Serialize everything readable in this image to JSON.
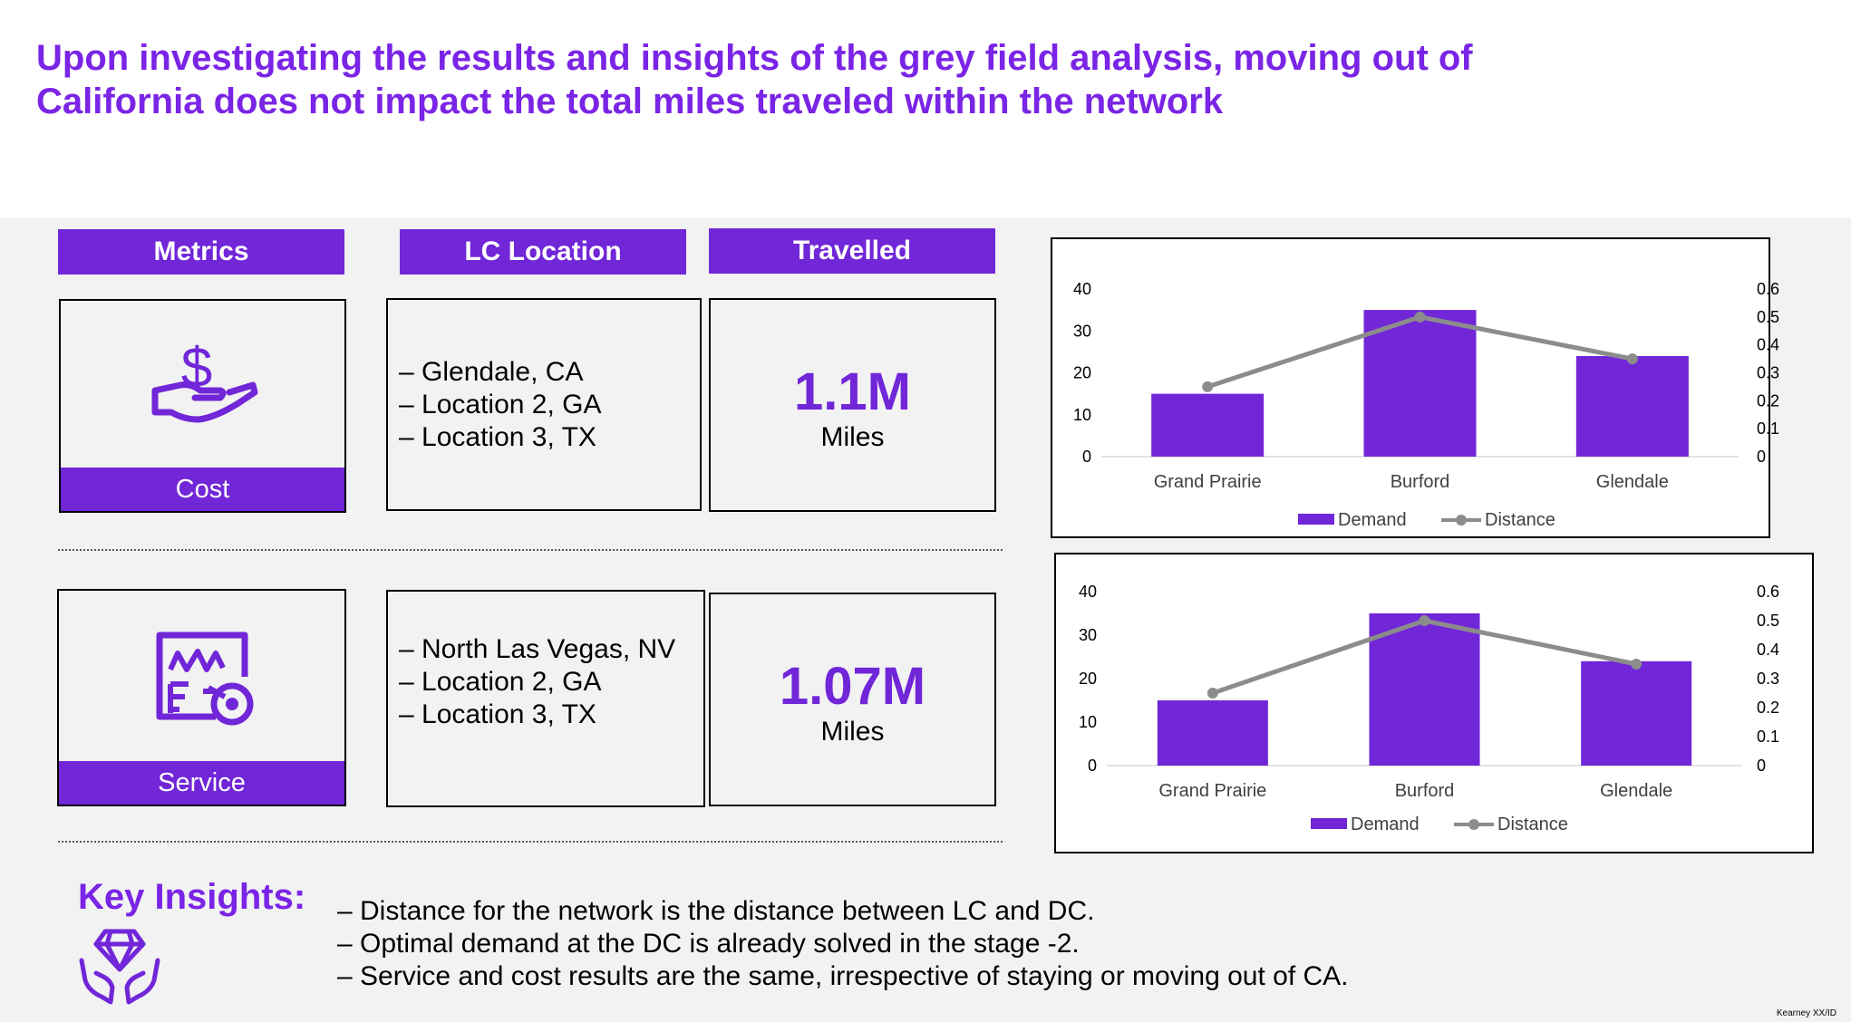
{
  "title": {
    "line1": "Upon investigating the results and insights of the grey field analysis, moving out of",
    "line2": "California does not impact the total miles traveled within the network"
  },
  "headers": {
    "metrics": "Metrics",
    "lc_location": "LC Location",
    "travelled": "Travelled"
  },
  "rows": [
    {
      "metric": "Cost",
      "icon": "money-hand-icon",
      "locations": [
        "– Glendale, CA",
        "– Location 2, GA",
        "– Location 3, TX"
      ],
      "travelled_value": "1.1M",
      "travelled_unit": "Miles"
    },
    {
      "metric": "Service",
      "icon": "chart-target-icon",
      "locations": [
        "– North Las Vegas, NV",
        "– Location 2, GA",
        "– Location 3, TX"
      ],
      "travelled_value": "1.07M",
      "travelled_unit": "Miles"
    }
  ],
  "chart_data": [
    {
      "type": "bar",
      "categories": [
        "Grand Prairie",
        "Burford",
        "Glendale"
      ],
      "series": [
        {
          "name": "Demand",
          "kind": "bar",
          "axis": "left",
          "values": [
            15,
            35,
            24
          ]
        },
        {
          "name": "Distance",
          "kind": "line",
          "axis": "right",
          "values": [
            0.25,
            0.5,
            0.35
          ]
        }
      ],
      "y_left": {
        "ticks": [
          "0",
          "10",
          "20",
          "30",
          "40"
        ],
        "ylim": [
          0,
          40
        ]
      },
      "y_right": {
        "ticks": [
          "0",
          "0.1",
          "0.2",
          "0.3",
          "0.4",
          "0.5",
          "0.6"
        ],
        "ylim": [
          0,
          0.6
        ]
      },
      "legend": "bottom",
      "colors": {
        "bar": "#7126d8",
        "line": "#8c8c8c"
      }
    },
    {
      "type": "bar",
      "categories": [
        "Grand Prairie",
        "Burford",
        "Glendale"
      ],
      "series": [
        {
          "name": "Demand",
          "kind": "bar",
          "axis": "left",
          "values": [
            15,
            35,
            24
          ]
        },
        {
          "name": "Distance",
          "kind": "line",
          "axis": "right",
          "values": [
            0.25,
            0.5,
            0.35
          ]
        }
      ],
      "y_left": {
        "ticks": [
          "0",
          "10",
          "20",
          "30",
          "40"
        ],
        "ylim": [
          0,
          40
        ]
      },
      "y_right": {
        "ticks": [
          "0",
          "0.1",
          "0.2",
          "0.3",
          "0.4",
          "0.5",
          "0.6"
        ],
        "ylim": [
          0,
          0.6
        ]
      },
      "legend": "bottom",
      "colors": {
        "bar": "#7126d8",
        "line": "#8c8c8c"
      }
    }
  ],
  "insights": {
    "title": "Key Insights:",
    "icon": "diamond-hands-icon",
    "items": [
      "– Distance for the network is the distance between LC and DC.",
      "– Optimal demand at the DC is already solved in the stage -2.",
      "– Service and cost results are the same, irrespective of staying or moving out of CA."
    ]
  },
  "footer": "Kearney XX/ID",
  "colors": {
    "accent": "#7126d8",
    "title": "#7a24e6",
    "panel": "#f2f2f2"
  }
}
